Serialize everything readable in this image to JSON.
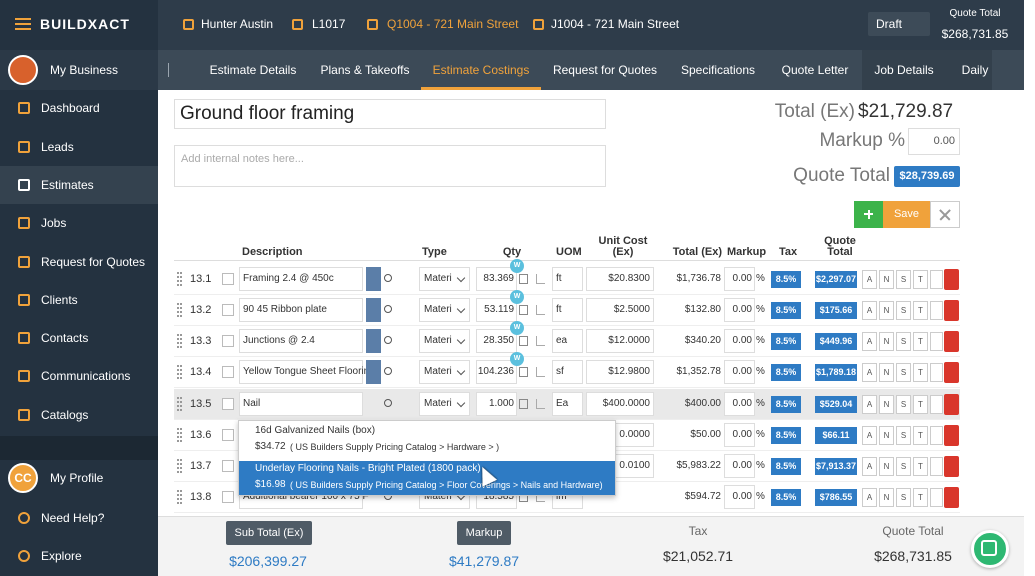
{
  "app": {
    "brand": "BUILDXACT"
  },
  "topbar": {
    "items": [
      "Hunter Austin",
      "L1017",
      "Q1004 - 721 Main Street",
      "J1004 - 721 Main Street"
    ],
    "status": "Draft",
    "quote_total_label": "Quote Total",
    "quote_total": "$268,731.85"
  },
  "sidebar": {
    "business": "My Business",
    "nav": [
      "Dashboard",
      "Leads",
      "Estimates",
      "Jobs",
      "Request for Quotes",
      "Clients",
      "Contacts",
      "Communications",
      "Catalogs"
    ],
    "profile_initials": "CC",
    "profile": "My Profile",
    "help": "Need Help?",
    "explore": "Explore"
  },
  "tabs": [
    "Estimate Details",
    "Plans & Takeoffs",
    "Estimate Costings",
    "Request for Quotes",
    "Specifications",
    "Quote Letter",
    "Job Details",
    "Daily"
  ],
  "section": {
    "title": "Ground floor framing",
    "notes_placeholder": "Add internal notes here...",
    "total_label": "Total (Ex)",
    "total": "$21,729.87",
    "markup_label": "Markup %",
    "markup": "0.00",
    "quote_total_label": "Quote Total",
    "quote_total": "$28,739.69",
    "save": "Save"
  },
  "table": {
    "headers": [
      "Description",
      "Type",
      "Qty",
      "UOM",
      "Unit Cost (Ex)",
      "Total (Ex)",
      "Markup",
      "Tax",
      "Quote Total"
    ],
    "actions": [
      "A",
      "N",
      "S",
      "T"
    ],
    "badge": "W",
    "percent": "%",
    "rows": [
      {
        "id": "13.1",
        "description": "Framing 2.4 @ 450c",
        "type": "Materi",
        "qty": "83.369",
        "uom": "ft",
        "unit_cost": "$20.8300",
        "total": "$1,736.78",
        "markup": "0.00",
        "tax": "8.5%",
        "quote_total": "$2,297.07"
      },
      {
        "id": "13.2",
        "description": "90 45 Ribbon plate",
        "type": "Materi",
        "qty": "53.119",
        "uom": "ft",
        "unit_cost": "$2.5000",
        "total": "$132.80",
        "markup": "0.00",
        "tax": "8.5%",
        "quote_total": "$175.66"
      },
      {
        "id": "13.3",
        "description": "Junctions @ 2.4",
        "type": "Materi",
        "qty": "28.350",
        "uom": "ea",
        "unit_cost": "$12.0000",
        "total": "$340.20",
        "markup": "0.00",
        "tax": "8.5%",
        "quote_total": "$449.96"
      },
      {
        "id": "13.4",
        "description": "Yellow Tongue Sheet Floorin",
        "type": "Materi",
        "qty": "104.236",
        "uom": "sf",
        "unit_cost": "$12.9800",
        "total": "$1,352.78",
        "markup": "0.00",
        "tax": "8.5%",
        "quote_total": "$1,789.18"
      },
      {
        "id": "13.5",
        "description": "Nail",
        "type": "Materi",
        "qty": "1.000",
        "uom": "Ea",
        "unit_cost": "$400.0000",
        "total": "$400.00",
        "markup": "0.00",
        "tax": "8.5%",
        "quote_total": "$529.04"
      },
      {
        "id": "13.6",
        "description": null,
        "type": null,
        "qty": null,
        "uom": null,
        "unit_cost": "0.0000",
        "total": "$50.00",
        "markup": "0.00",
        "tax": "8.5%",
        "quote_total": "$66.11"
      },
      {
        "id": "13.7",
        "description": null,
        "type": null,
        "qty": null,
        "uom": null,
        "unit_cost": "0.0100",
        "total": "$5,983.22",
        "markup": "0.00",
        "tax": "8.5%",
        "quote_total": "$7,913.37"
      },
      {
        "id": "13.8",
        "description": "Additional bearer 100 x 75 F",
        "type": "Materi",
        "qty": "18.585",
        "uom": "lm",
        "unit_cost": null,
        "total": "$594.72",
        "markup": "0.00",
        "tax": "8.5%",
        "quote_total": "$786.55"
      }
    ]
  },
  "dropdown": [
    {
      "name": "16d Galvanized Nails (box)",
      "price": "$34.72",
      "source": "( US Builders Supply Pricing Catalog  > Hardware > )"
    },
    {
      "name": "Underlay Flooring Nails - Bright Plated (1800 pack)",
      "price": "$16.98",
      "source": "( US Builders Supply Pricing Catalog > Floor Coverings > Nails and Hardware)"
    }
  ],
  "footer": {
    "sub_total_label": "Sub Total (Ex)",
    "sub_total": "$206,399.27",
    "markup_label": "Markup",
    "markup": "$41,279.87",
    "tax_label": "Tax",
    "tax": "$21,052.71",
    "quote_total_label": "Quote Total",
    "quote_total": "$268,731.85"
  }
}
